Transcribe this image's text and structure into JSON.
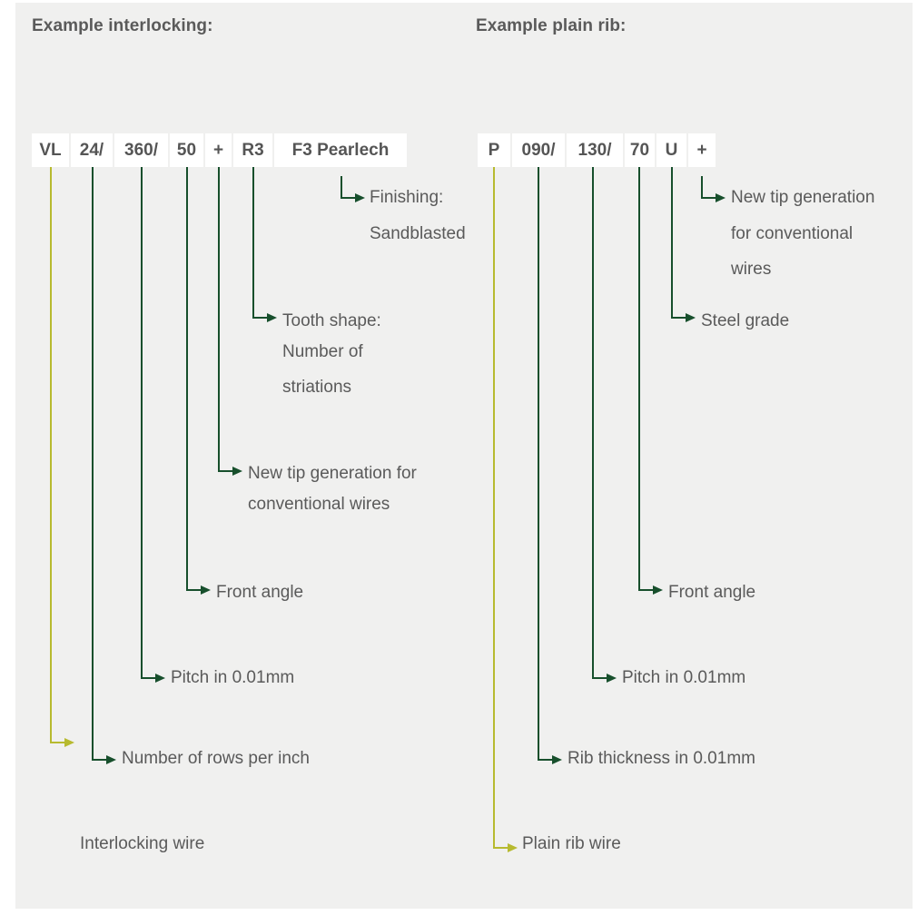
{
  "headings": {
    "left": "Example interlocking:",
    "right": "Example plain rib:"
  },
  "interlocking": {
    "codes": [
      "VL",
      "24/",
      "360/",
      "50",
      "+",
      "R3",
      "F3 Pearlech"
    ],
    "labels": {
      "finishing": [
        "Finishing:",
        "Sandblasted"
      ],
      "tooth_shape": [
        "Tooth shape:",
        "Number of",
        "striations"
      ],
      "new_tip": [
        "New tip generation for",
        "conventional wires"
      ],
      "front_angle": "Front angle",
      "pitch": "Pitch in 0.01mm",
      "rows": "Number of rows per inch",
      "wire": "Interlocking wire"
    }
  },
  "plain_rib": {
    "codes": [
      "P",
      "090/",
      "130/",
      "70",
      "U",
      "+"
    ],
    "labels": {
      "new_tip": [
        "New tip generation",
        "for conventional",
        "wires"
      ],
      "steel_grade": "Steel grade",
      "front_angle": "Front angle",
      "pitch": "Pitch in 0.01mm",
      "rib_thickness": "Rib thickness in 0.01mm",
      "wire": "Plain rib wire"
    }
  },
  "colors": {
    "panel_background": "#f0f0ef",
    "leader_dark_green": "#174f2c",
    "leader_olive": "#b7ba2f",
    "text": "#5a5a5a"
  }
}
